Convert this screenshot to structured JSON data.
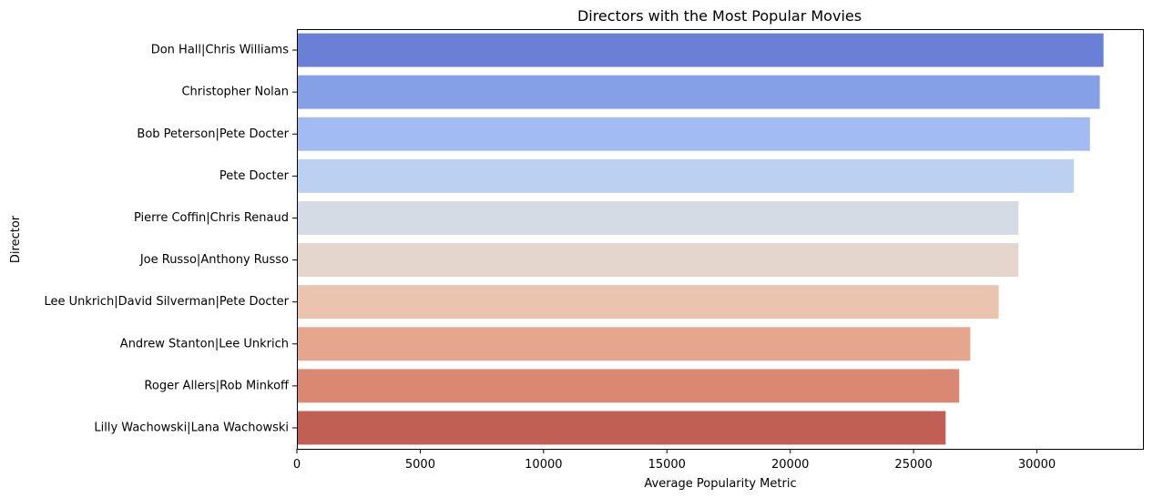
{
  "chart_data": {
    "type": "bar",
    "orientation": "horizontal",
    "title": "Directors with the Most Popular Movies",
    "xlabel": "Average Popularity Metric",
    "ylabel": "Director",
    "xlim": [
      0,
      34300
    ],
    "xticks": [
      0,
      5000,
      10000,
      15000,
      20000,
      25000,
      30000
    ],
    "grid": false,
    "categories": [
      "Don Hall|Chris Williams",
      "Christopher Nolan",
      "Bob Peterson|Pete Docter",
      "Pete Docter",
      "Pierre Coffin|Chris Renaud",
      "Joe Russo|Anthony Russo",
      "Lee Unkrich|David Silverman|Pete Docter",
      "Andrew Stanton|Lee Unkrich",
      "Roger Allers|Rob Minkoff",
      "Lilly Wachowski|Lana Wachowski"
    ],
    "values": [
      32700,
      32550,
      32150,
      31500,
      29250,
      29250,
      28450,
      27300,
      26850,
      26300
    ],
    "colors": [
      "#6a80d6",
      "#85a0e6",
      "#a2bbf3",
      "#bcd0f1",
      "#d5dbe5",
      "#e4d6cd",
      "#ebc4b0",
      "#e6a68e",
      "#da8872",
      "#c25f55"
    ]
  }
}
